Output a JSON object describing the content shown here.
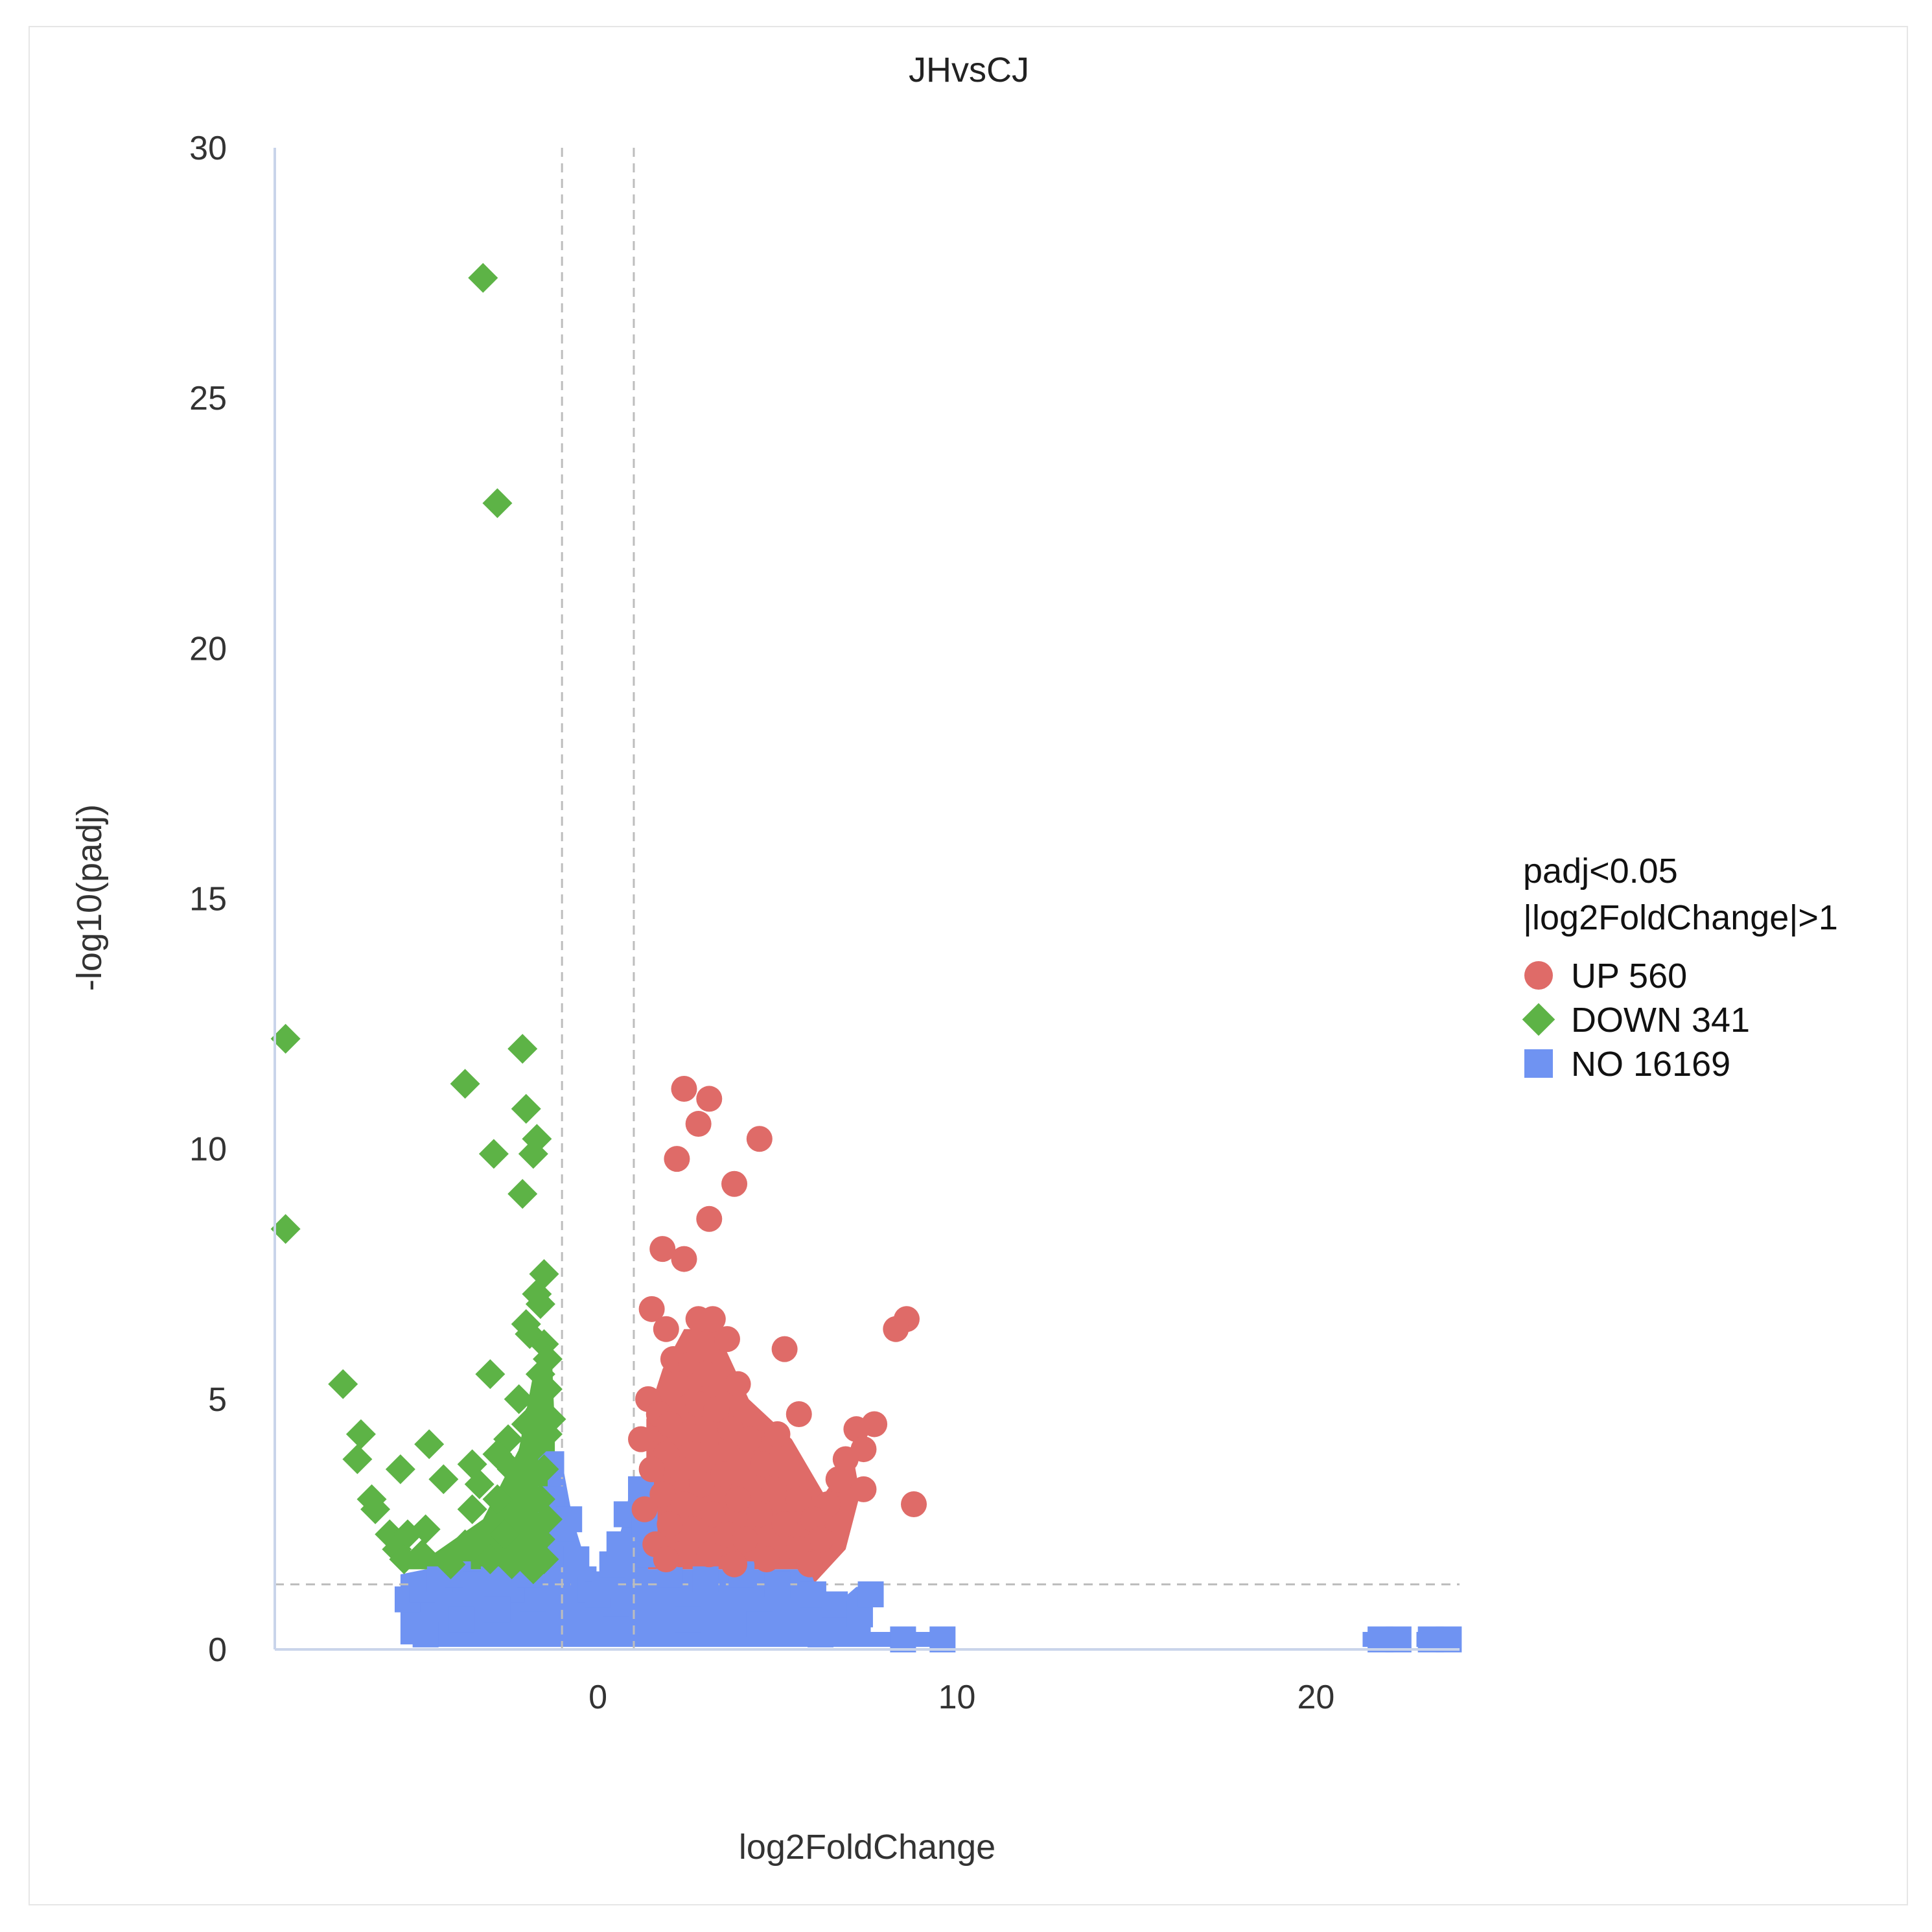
{
  "chart_data": {
    "type": "scatter",
    "title": "JHvsCJ",
    "xlabel": "log2FoldChange",
    "ylabel": "-log10(padj)",
    "xlim": [
      -9,
      24
    ],
    "ylim": [
      0,
      30
    ],
    "x_ticks": [
      0,
      10,
      20
    ],
    "y_ticks": [
      0,
      5,
      10,
      15,
      20,
      25,
      30
    ],
    "thresholds": {
      "log2fc": [
        -1,
        1
      ],
      "neg_log10_padj": 1.3
    },
    "grid": false,
    "legend": {
      "placement": "right",
      "title_lines": [
        "padj<0.05",
        "|log2FoldChange|>1"
      ],
      "entries": [
        {
          "key": "up",
          "label": "UP 560",
          "shape": "circle",
          "color": "#df6b68"
        },
        {
          "key": "down",
          "label": "DOWN 341",
          "shape": "diamond",
          "color": "#5db346"
        },
        {
          "key": "no",
          "label": "NO 16169",
          "shape": "square",
          "color": "#6f93f2"
        }
      ]
    },
    "series": [
      {
        "name": "DOWN 341",
        "marker": "diamond",
        "color": "#5db346",
        "points": [
          [
            -3.2,
            27.4
          ],
          [
            -2.8,
            22.9
          ],
          [
            -8.7,
            12.2
          ],
          [
            -8.7,
            8.4
          ],
          [
            -2.1,
            12.0
          ],
          [
            -3.7,
            11.3
          ],
          [
            -2.0,
            10.8
          ],
          [
            -2.9,
            9.9
          ],
          [
            -1.7,
            10.2
          ],
          [
            -1.8,
            9.9
          ],
          [
            -2.1,
            9.1
          ],
          [
            -1.5,
            7.5
          ],
          [
            -1.7,
            7.1
          ],
          [
            -1.6,
            6.9
          ],
          [
            -2.0,
            6.5
          ],
          [
            -1.9,
            6.3
          ],
          [
            -1.5,
            6.1
          ],
          [
            -1.4,
            5.8
          ],
          [
            -1.6,
            5.5
          ],
          [
            -3.0,
            5.5
          ],
          [
            -7.1,
            5.3
          ],
          [
            -1.4,
            5.2
          ],
          [
            -2.2,
            5.0
          ],
          [
            -1.6,
            4.8
          ],
          [
            -1.3,
            4.6
          ],
          [
            -2.0,
            4.5
          ],
          [
            -6.6,
            4.3
          ],
          [
            -2.5,
            4.2
          ],
          [
            -1.4,
            4.3
          ],
          [
            -4.7,
            4.1
          ],
          [
            -1.8,
            4.0
          ],
          [
            -2.8,
            3.9
          ],
          [
            -6.7,
            3.8
          ],
          [
            -3.5,
            3.7
          ],
          [
            -5.5,
            3.6
          ],
          [
            -2.4,
            3.6
          ],
          [
            -1.5,
            3.6
          ],
          [
            -4.3,
            3.4
          ],
          [
            -3.3,
            3.3
          ],
          [
            -2.1,
            3.2
          ],
          [
            -6.3,
            3.0
          ],
          [
            -2.8,
            3.0
          ],
          [
            -1.6,
            3.0
          ],
          [
            -6.2,
            2.8
          ],
          [
            -3.5,
            2.8
          ],
          [
            -2.3,
            2.7
          ],
          [
            -1.4,
            2.6
          ],
          [
            -4.8,
            2.4
          ],
          [
            -5.8,
            2.3
          ],
          [
            -5.3,
            2.3
          ],
          [
            -2.6,
            2.3
          ],
          [
            -1.6,
            2.2
          ],
          [
            -3.7,
            2.1
          ],
          [
            -5.6,
            2.0
          ],
          [
            -2.0,
            2.0
          ],
          [
            -4.9,
            1.9
          ],
          [
            -5.4,
            1.8
          ],
          [
            -3.0,
            1.8
          ],
          [
            -1.5,
            1.8
          ],
          [
            -4.1,
            1.7
          ],
          [
            -2.4,
            1.7
          ],
          [
            -1.8,
            1.6
          ]
        ]
      },
      {
        "name": "UP 560",
        "marker": "circle",
        "color": "#df6b68",
        "points": [
          [
            2.4,
            11.2
          ],
          [
            3.1,
            11.0
          ],
          [
            2.8,
            10.5
          ],
          [
            4.5,
            10.2
          ],
          [
            2.2,
            9.8
          ],
          [
            3.8,
            9.3
          ],
          [
            3.1,
            8.6
          ],
          [
            1.8,
            8.0
          ],
          [
            2.4,
            7.8
          ],
          [
            1.5,
            6.8
          ],
          [
            2.8,
            6.6
          ],
          [
            3.2,
            6.6
          ],
          [
            8.6,
            6.6
          ],
          [
            8.3,
            6.4
          ],
          [
            1.9,
            6.4
          ],
          [
            3.6,
            6.2
          ],
          [
            5.2,
            6.0
          ],
          [
            2.1,
            5.8
          ],
          [
            2.6,
            5.7
          ],
          [
            3.0,
            5.5
          ],
          [
            2.2,
            5.3
          ],
          [
            3.9,
            5.3
          ],
          [
            1.4,
            5.0
          ],
          [
            2.8,
            4.9
          ],
          [
            3.3,
            4.8
          ],
          [
            1.7,
            4.7
          ],
          [
            5.6,
            4.7
          ],
          [
            2.0,
            4.5
          ],
          [
            7.7,
            4.5
          ],
          [
            7.2,
            4.4
          ],
          [
            3.7,
            4.4
          ],
          [
            2.5,
            4.3
          ],
          [
            5.0,
            4.3
          ],
          [
            1.2,
            4.2
          ],
          [
            4.2,
            4.2
          ],
          [
            3.0,
            4.1
          ],
          [
            7.4,
            4.0
          ],
          [
            1.9,
            3.9
          ],
          [
            2.7,
            3.9
          ],
          [
            6.9,
            3.8
          ],
          [
            4.6,
            3.7
          ],
          [
            2.3,
            3.6
          ],
          [
            1.5,
            3.6
          ],
          [
            3.5,
            3.5
          ],
          [
            6.7,
            3.4
          ],
          [
            2.9,
            3.3
          ],
          [
            4.9,
            3.2
          ],
          [
            7.4,
            3.2
          ],
          [
            1.8,
            3.1
          ],
          [
            3.9,
            3.0
          ],
          [
            5.6,
            3.0
          ],
          [
            8.8,
            2.9
          ],
          [
            2.4,
            2.9
          ],
          [
            6.4,
            2.9
          ],
          [
            1.3,
            2.8
          ],
          [
            3.2,
            2.7
          ],
          [
            4.5,
            2.7
          ],
          [
            6.0,
            2.6
          ],
          [
            2.0,
            2.5
          ],
          [
            5.2,
            2.5
          ],
          [
            2.7,
            2.4
          ],
          [
            3.6,
            2.3
          ],
          [
            4.1,
            2.2
          ],
          [
            6.2,
            2.2
          ],
          [
            1.6,
            2.1
          ],
          [
            5.6,
            2.0
          ],
          [
            2.3,
            1.9
          ],
          [
            3.1,
            1.9
          ],
          [
            4.7,
            1.8
          ],
          [
            1.9,
            1.8
          ],
          [
            5.9,
            1.7
          ],
          [
            3.8,
            1.7
          ]
        ]
      },
      {
        "name": "NO 16169",
        "marker": "square",
        "color": "#6f93f2",
        "points": [
          [
            -5.3,
            1.0
          ],
          [
            -4.9,
            1.2
          ],
          [
            -4.4,
            1.4
          ],
          [
            -3.9,
            1.5
          ],
          [
            -3.4,
            1.3
          ],
          [
            -2.9,
            1.4
          ],
          [
            -2.4,
            1.2
          ],
          [
            -1.9,
            1.5
          ],
          [
            -4.8,
            0.3
          ],
          [
            -3.8,
            0.6
          ],
          [
            -2.8,
            0.8
          ],
          [
            -1.8,
            0.5
          ],
          [
            -1.3,
            3.7
          ],
          [
            -1.3,
            3.0
          ],
          [
            -1.2,
            2.3
          ],
          [
            -1.0,
            1.9
          ],
          [
            -0.8,
            2.6
          ],
          [
            -0.6,
            1.8
          ],
          [
            -0.4,
            1.4
          ],
          [
            -0.2,
            1.2
          ],
          [
            0.0,
            1.1
          ],
          [
            0.2,
            1.3
          ],
          [
            0.4,
            1.7
          ],
          [
            0.6,
            2.1
          ],
          [
            0.8,
            2.7
          ],
          [
            1.2,
            3.2
          ],
          [
            1.3,
            2.5
          ],
          [
            1.4,
            1.9
          ],
          [
            2.0,
            1.5
          ],
          [
            3.0,
            1.4
          ],
          [
            4.0,
            1.5
          ],
          [
            5.0,
            1.3
          ],
          [
            6.0,
            1.1
          ],
          [
            6.6,
            0.9
          ],
          [
            7.3,
            0.7
          ],
          [
            7.6,
            1.1
          ],
          [
            0.5,
            0.4
          ],
          [
            2.5,
            0.6
          ],
          [
            4.5,
            0.5
          ],
          [
            6.2,
            0.3
          ],
          [
            8.5,
            0.2
          ],
          [
            9.6,
            0.2
          ],
          [
            21.8,
            0.2
          ],
          [
            22.3,
            0.2
          ],
          [
            23.2,
            0.2
          ],
          [
            23.7,
            0.2
          ]
        ]
      }
    ],
    "no_region": {
      "color": "#6f93f2",
      "outline": [
        [
          -5.5,
          0.1
        ],
        [
          -5.5,
          1.5
        ],
        [
          -4.8,
          1.6
        ],
        [
          -3.5,
          1.6
        ],
        [
          -2.0,
          1.6
        ],
        [
          -1.4,
          1.6
        ],
        [
          -1.4,
          3.75
        ],
        [
          -1.0,
          3.75
        ],
        [
          -0.7,
          2.6
        ],
        [
          -0.4,
          1.9
        ],
        [
          -0.1,
          1.25
        ],
        [
          0.2,
          1.5
        ],
        [
          0.5,
          2.0
        ],
        [
          0.8,
          2.8
        ],
        [
          0.9,
          3.3
        ],
        [
          1.4,
          3.3
        ],
        [
          1.4,
          1.6
        ],
        [
          4.0,
          1.6
        ],
        [
          5.9,
          1.6
        ],
        [
          6.1,
          1.2
        ],
        [
          6.8,
          1.0
        ],
        [
          7.2,
          1.25
        ],
        [
          7.6,
          1.25
        ],
        [
          7.6,
          0.35
        ],
        [
          9.8,
          0.35
        ],
        [
          9.8,
          0.05
        ],
        [
          -4.8,
          0.05
        ],
        [
          -4.8,
          0.1
        ]
      ],
      "far_blocks": [
        [
          21.3,
          22.5
        ],
        [
          22.8,
          24.0
        ]
      ],
      "far_block_y": [
        0.05,
        0.35
      ]
    },
    "up_region": {
      "color": "#df6b68",
      "outline": [
        [
          1.35,
          1.6
        ],
        [
          1.35,
          4.6
        ],
        [
          1.8,
          5.6
        ],
        [
          2.4,
          6.4
        ],
        [
          3.3,
          6.4
        ],
        [
          4.2,
          5.0
        ],
        [
          5.4,
          4.2
        ],
        [
          6.3,
          3.1
        ],
        [
          7.1,
          3.9
        ],
        [
          7.3,
          3.1
        ],
        [
          6.9,
          2.0
        ],
        [
          6.0,
          1.3
        ],
        [
          5.9,
          1.6
        ]
      ]
    },
    "down_region": {
      "color": "#5db346",
      "outline": [
        [
          -5.5,
          1.6
        ],
        [
          -4.6,
          1.9
        ],
        [
          -3.2,
          2.6
        ],
        [
          -2.2,
          4.0
        ],
        [
          -1.8,
          5.5
        ],
        [
          -1.3,
          6.2
        ],
        [
          -1.2,
          4.4
        ],
        [
          -1.2,
          1.6
        ]
      ]
    }
  }
}
